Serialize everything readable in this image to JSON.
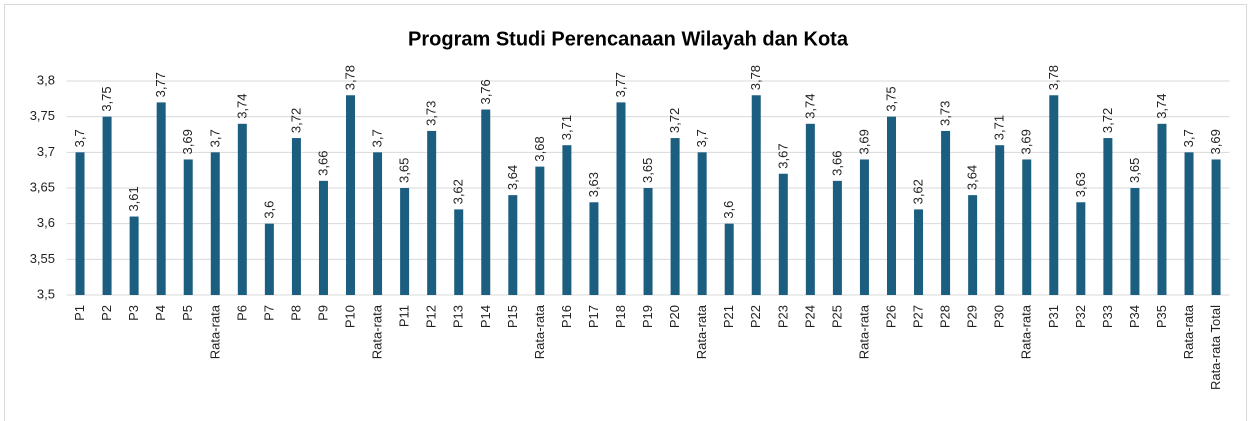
{
  "chart_data": {
    "type": "bar",
    "title": "Program Studi Perencanaan Wilayah dan Kota",
    "categories": [
      "P1",
      "P2",
      "P3",
      "P4",
      "P5",
      "Rata-rata",
      "P6",
      "P7",
      "P8",
      "P9",
      "P10",
      "Rata-rata",
      "P11",
      "P12",
      "P13",
      "P14",
      "P15",
      "Rata-rata",
      "P16",
      "P17",
      "P18",
      "P19",
      "P20",
      "Rata-rata",
      "P21",
      "P22",
      "P23",
      "P24",
      "P25",
      "Rata-rata",
      "P26",
      "P27",
      "P28",
      "P29",
      "P30",
      "Rata-rata",
      "P31",
      "P32",
      "P33",
      "P34",
      "P35",
      "Rata-rata",
      "Rata-rata Total"
    ],
    "values": [
      3.7,
      3.75,
      3.61,
      3.77,
      3.69,
      3.7,
      3.74,
      3.6,
      3.72,
      3.66,
      3.78,
      3.7,
      3.65,
      3.73,
      3.62,
      3.76,
      3.64,
      3.68,
      3.71,
      3.63,
      3.77,
      3.65,
      3.72,
      3.7,
      3.6,
      3.78,
      3.67,
      3.74,
      3.66,
      3.69,
      3.75,
      3.62,
      3.73,
      3.64,
      3.71,
      3.69,
      3.78,
      3.63,
      3.72,
      3.65,
      3.74,
      3.7,
      3.69
    ],
    "value_labels": [
      "3,7",
      "3,75",
      "3,61",
      "3,77",
      "3,69",
      "3,7",
      "3,74",
      "3,6",
      "3,72",
      "3,66",
      "3,78",
      "3,7",
      "3,65",
      "3,73",
      "3,62",
      "3,76",
      "3,64",
      "3,68",
      "3,71",
      "3,63",
      "3,77",
      "3,65",
      "3,72",
      "3,7",
      "3,6",
      "3,78",
      "3,67",
      "3,74",
      "3,66",
      "3,69",
      "3,75",
      "3,62",
      "3,73",
      "3,64",
      "3,71",
      "3,69",
      "3,78",
      "3,63",
      "3,72",
      "3,65",
      "3,74",
      "3,7",
      "3,69"
    ],
    "color": "#1b5e80",
    "ylim": [
      3.5,
      3.8
    ],
    "yticks": [
      {
        "value": 3.5,
        "label": "3,5"
      },
      {
        "value": 3.55,
        "label": "3,55"
      },
      {
        "value": 3.6,
        "label": "3,6"
      },
      {
        "value": 3.65,
        "label": "3,65"
      },
      {
        "value": 3.7,
        "label": "3,7"
      },
      {
        "value": 3.75,
        "label": "3,75"
      },
      {
        "value": 3.8,
        "label": "3,8"
      }
    ],
    "grid": true
  }
}
